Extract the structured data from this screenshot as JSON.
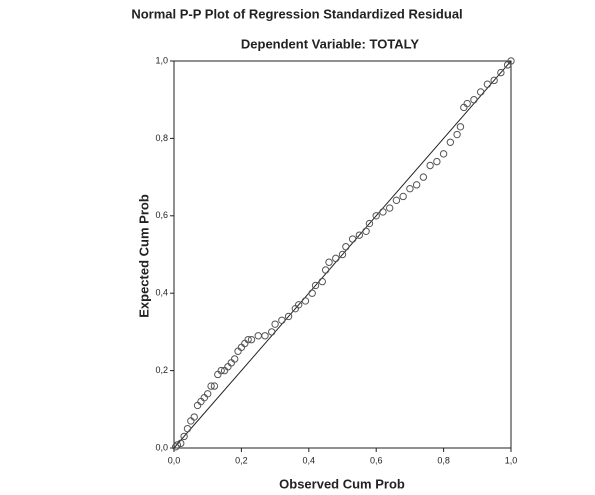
{
  "chart_data": {
    "type": "scatter",
    "title": "Normal P-P Plot of Regression Standardized Residual",
    "subtitle": "Dependent Variable: TOTALY",
    "x_label": "Observed Cum Prob",
    "y_label": "Expected Cum Prob",
    "color": "#555555",
    "xlim": [
      0,
      1
    ],
    "ylim": [
      0,
      1
    ],
    "xticks": [
      {
        "value": 0,
        "label": "0,0"
      },
      {
        "value": 0.2,
        "label": "0,2"
      },
      {
        "value": 0.4,
        "label": "0,4"
      },
      {
        "value": 0.6,
        "label": "0,6"
      },
      {
        "value": 0.8,
        "label": "0,8"
      },
      {
        "value": 1,
        "label": "1,0"
      }
    ],
    "yticks": [
      {
        "value": 0,
        "label": "0,0"
      },
      {
        "value": 0.2,
        "label": "0,2"
      },
      {
        "value": 0.4,
        "label": "0,4"
      },
      {
        "value": 0.6,
        "label": "0,6"
      },
      {
        "value": 0.8,
        "label": "0,8"
      },
      {
        "value": 1,
        "label": "1,0"
      }
    ],
    "x": [
      0.005,
      0.01,
      0.02,
      0.03,
      0.04,
      0.05,
      0.06,
      0.07,
      0.08,
      0.09,
      0.1,
      0.11,
      0.12,
      0.13,
      0.14,
      0.15,
      0.16,
      0.17,
      0.18,
      0.19,
      0.2,
      0.21,
      0.22,
      0.23,
      0.25,
      0.27,
      0.29,
      0.3,
      0.32,
      0.34,
      0.36,
      0.37,
      0.39,
      0.41,
      0.42,
      0.44,
      0.45,
      0.46,
      0.48,
      0.5,
      0.51,
      0.53,
      0.55,
      0.57,
      0.58,
      0.6,
      0.62,
      0.64,
      0.66,
      0.68,
      0.7,
      0.72,
      0.74,
      0.76,
      0.78,
      0.8,
      0.82,
      0.84,
      0.85,
      0.86,
      0.87,
      0.89,
      0.91,
      0.93,
      0.95,
      0.97,
      0.99,
      1.0
    ],
    "values": [
      0.003,
      0.008,
      0.012,
      0.03,
      0.05,
      0.07,
      0.08,
      0.11,
      0.12,
      0.13,
      0.14,
      0.16,
      0.16,
      0.19,
      0.2,
      0.2,
      0.21,
      0.22,
      0.23,
      0.25,
      0.26,
      0.27,
      0.28,
      0.28,
      0.29,
      0.29,
      0.3,
      0.32,
      0.33,
      0.34,
      0.36,
      0.37,
      0.38,
      0.4,
      0.42,
      0.43,
      0.46,
      0.48,
      0.49,
      0.5,
      0.52,
      0.54,
      0.55,
      0.56,
      0.58,
      0.6,
      0.61,
      0.62,
      0.64,
      0.65,
      0.67,
      0.68,
      0.7,
      0.73,
      0.74,
      0.76,
      0.79,
      0.81,
      0.83,
      0.88,
      0.89,
      0.9,
      0.92,
      0.94,
      0.95,
      0.97,
      0.99,
      1.0
    ]
  }
}
